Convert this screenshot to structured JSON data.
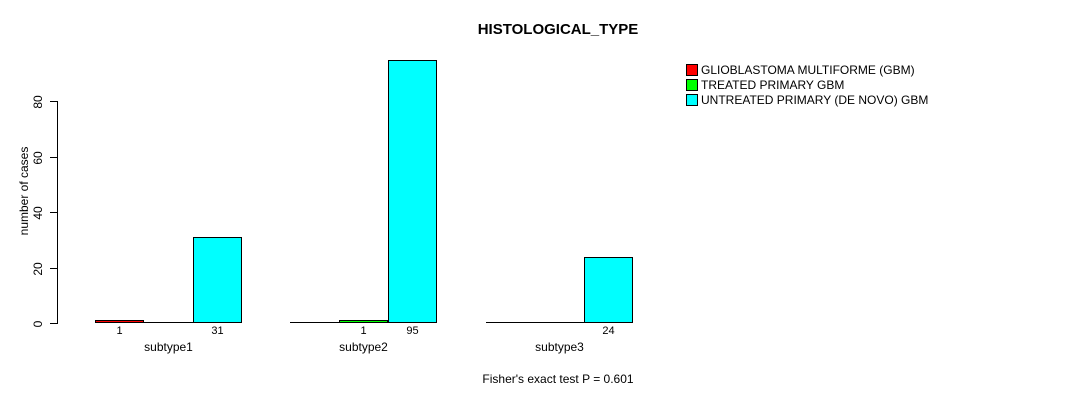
{
  "chart_data": {
    "type": "bar",
    "title": "HISTOLOGICAL_TYPE",
    "subtitle": "Fisher's exact test P = 0.601",
    "ylabel": "number of cases",
    "xlabel": "",
    "categories": [
      "subtype1",
      "subtype2",
      "subtype3"
    ],
    "series": [
      {
        "name": "GLIOBLASTOMA MULTIFORME (GBM)",
        "color": "#ff0000",
        "values": [
          1,
          0,
          0
        ]
      },
      {
        "name": "TREATED PRIMARY GBM",
        "color": "#00ff00",
        "values": [
          0,
          1,
          0
        ]
      },
      {
        "name": "UNTREATED PRIMARY (DE NOVO) GBM",
        "color": "#00ffff",
        "values": [
          31,
          95,
          24
        ]
      }
    ],
    "yticks": [
      0,
      20,
      40,
      60,
      80
    ],
    "ylim": [
      0,
      96
    ],
    "grid": false,
    "legend_position": "top-right",
    "value_labels": "shown under each non-zero bar",
    "axis_color": "#000000",
    "background_color": "#ffffff",
    "text_color": "#000000"
  }
}
